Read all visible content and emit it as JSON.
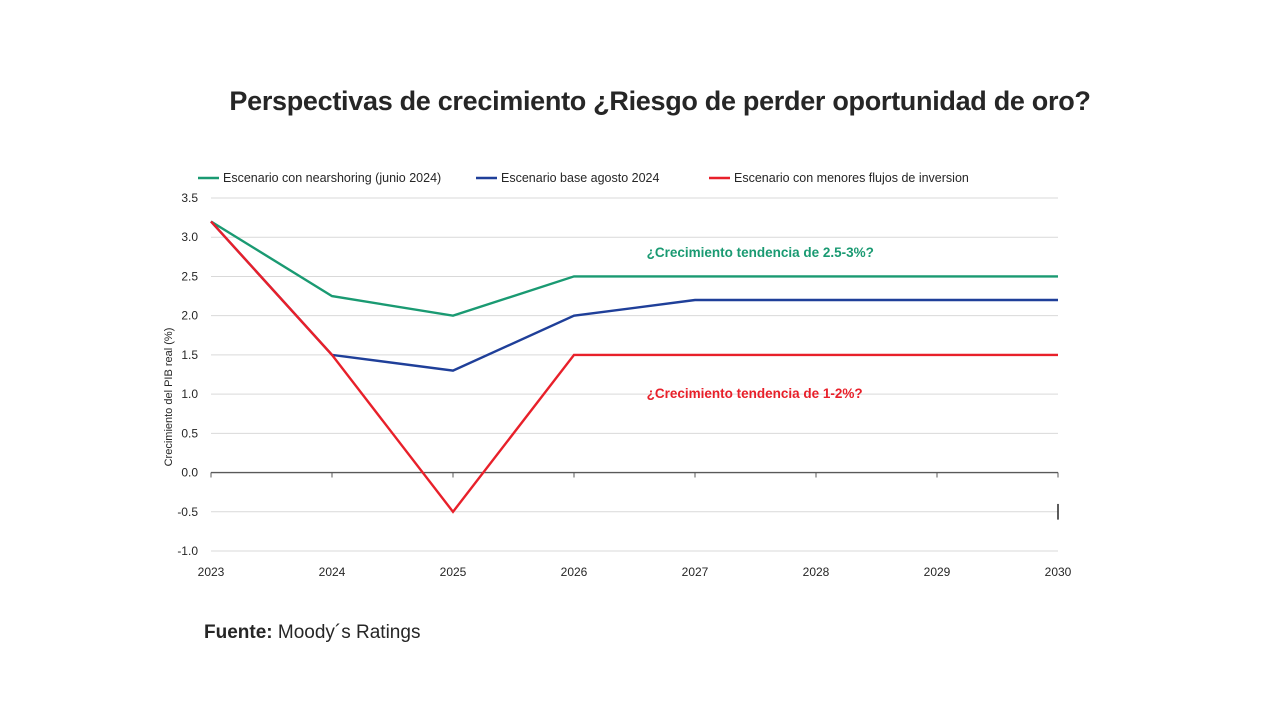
{
  "title": "Perspectivas de crecimiento ¿Riesgo de perder oportunidad de oro?",
  "source": {
    "label": "Fuente:",
    "value": " Moody´s Ratings"
  },
  "colors": {
    "nearshoring": "#1a9a72",
    "base": "#1f3f99",
    "menores": "#e8202a",
    "grid": "#d9d9d9",
    "axis": "#595959"
  },
  "chart_data": {
    "type": "line",
    "ylabel": "Crecimiento del PIB real (%)",
    "xlabel": "",
    "x": [
      "2023",
      "2024",
      "2025",
      "2026",
      "2027",
      "2028",
      "2029",
      "2030"
    ],
    "ylim": [
      -1.0,
      3.5
    ],
    "yticks": [
      "3.5",
      "3.0",
      "2.5",
      "2.0",
      "1.5",
      "1.0",
      "0.5",
      "0.0",
      "-0.5",
      "-1.0"
    ],
    "grid": true,
    "legend_position": "top",
    "series": [
      {
        "name": "Escenario con nearshoring (junio 2024)",
        "color": "#1a9a72",
        "values": [
          3.2,
          2.25,
          2.0,
          2.5,
          2.5,
          2.5,
          2.5,
          2.5
        ]
      },
      {
        "name": "Escenario  base  agosto  2024",
        "color": "#1f3f99",
        "values": [
          3.2,
          1.5,
          1.3,
          2.0,
          2.2,
          2.2,
          2.2,
          2.2
        ]
      },
      {
        "name": "Escenario con menores flujos de inversion",
        "color": "#e8202a",
        "values": [
          3.2,
          1.5,
          -0.5,
          1.5,
          1.5,
          1.5,
          1.5,
          1.5
        ]
      }
    ],
    "annotations": [
      {
        "text": "¿Crecimiento  tendencia de 2.5-3%?",
        "color": "#1a9a72",
        "x": 2026.6,
        "y": 2.8
      },
      {
        "text": "¿Crecimiento  tendencia de 1-2%?",
        "color": "#e8202a",
        "x": 2026.6,
        "y": 1.0
      }
    ]
  }
}
